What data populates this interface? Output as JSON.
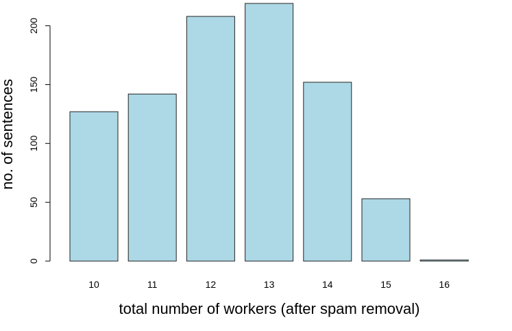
{
  "chart_data": {
    "type": "bar",
    "categories": [
      "10",
      "11",
      "12",
      "13",
      "14",
      "15",
      "16"
    ],
    "values": [
      127,
      142,
      208,
      219,
      152,
      53,
      1
    ],
    "title": "",
    "xlabel": "total number of workers (after spam removal)",
    "ylabel": "no. of sentences",
    "ylim": [
      0,
      219
    ],
    "yticks": [
      "0",
      "50",
      "100",
      "150",
      "200"
    ],
    "ytick_values": [
      0,
      50,
      100,
      150,
      200
    ],
    "bar_color": "#add8e6",
    "grid": false,
    "legend": "none"
  }
}
